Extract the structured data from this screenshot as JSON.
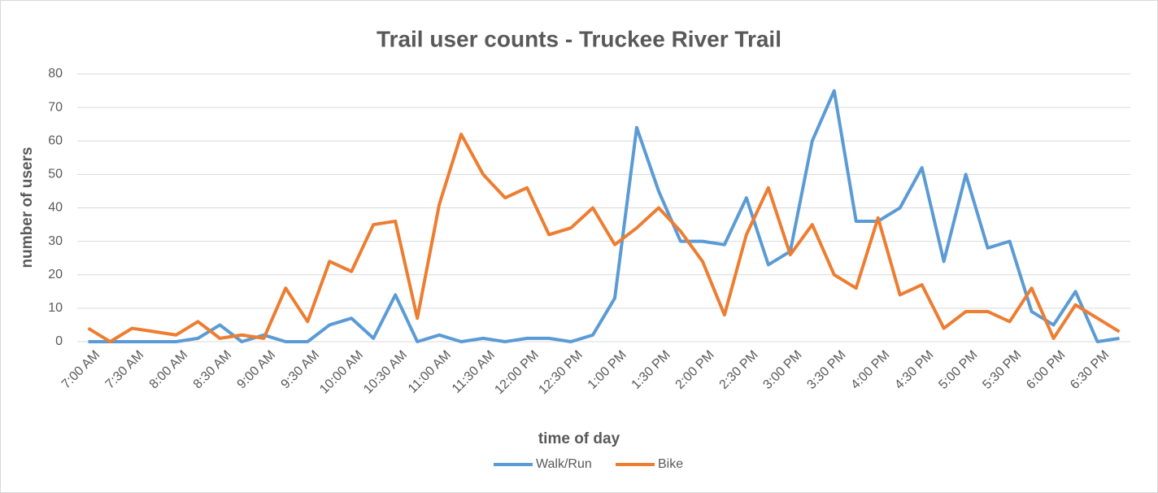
{
  "chart_data": {
    "type": "line",
    "title": "Trail user counts - Truckee River Trail",
    "x_label": "time of day",
    "y_label": "number of users",
    "categories": [
      "7:00 AM",
      null,
      "7:30 AM",
      null,
      "8:00 AM",
      null,
      "8:30 AM",
      null,
      "9:00 AM",
      null,
      "9:30 AM",
      null,
      "10:00 AM",
      null,
      "10:30 AM",
      null,
      "11:00 AM",
      null,
      "11:30 AM",
      null,
      "12:00 PM",
      null,
      "12:30 PM",
      null,
      "1:00 PM",
      null,
      "1:30 PM",
      null,
      "2:00 PM",
      null,
      "2:30 PM",
      null,
      "3:00 PM",
      null,
      "3:30 PM",
      null,
      "4:00 PM",
      null,
      "4:30 PM",
      null,
      "5:00 PM",
      null,
      "5:30 PM",
      null,
      "6:00 PM",
      null,
      "6:30 PM",
      null
    ],
    "series": [
      {
        "name": "Walk/Run",
        "color": "#5b9bd5",
        "values": [
          0,
          0,
          0,
          0,
          0,
          1,
          5,
          0,
          2,
          0,
          0,
          5,
          7,
          1,
          14,
          0,
          2,
          0,
          1,
          0,
          1,
          1,
          0,
          2,
          13,
          64,
          45,
          30,
          30,
          29,
          43,
          23,
          27,
          60,
          75,
          36,
          36,
          40,
          52,
          24,
          50,
          28,
          30,
          9,
          5,
          15,
          0,
          1
        ]
      },
      {
        "name": "Bike",
        "color": "#ed7d31",
        "values": [
          4,
          0,
          4,
          3,
          2,
          6,
          1,
          2,
          1,
          16,
          6,
          24,
          21,
          35,
          36,
          7,
          41,
          62,
          50,
          43,
          46,
          32,
          34,
          40,
          29,
          34,
          40,
          33,
          24,
          8,
          32,
          46,
          26,
          35,
          20,
          16,
          37,
          14,
          17,
          4,
          9,
          9,
          6,
          16,
          1,
          11,
          7,
          3
        ]
      }
    ],
    "ylim": [
      0,
      80
    ],
    "yticks": [
      0,
      10,
      20,
      30,
      40,
      50,
      60,
      70,
      80
    ],
    "grid": true,
    "legend": "bottom"
  }
}
